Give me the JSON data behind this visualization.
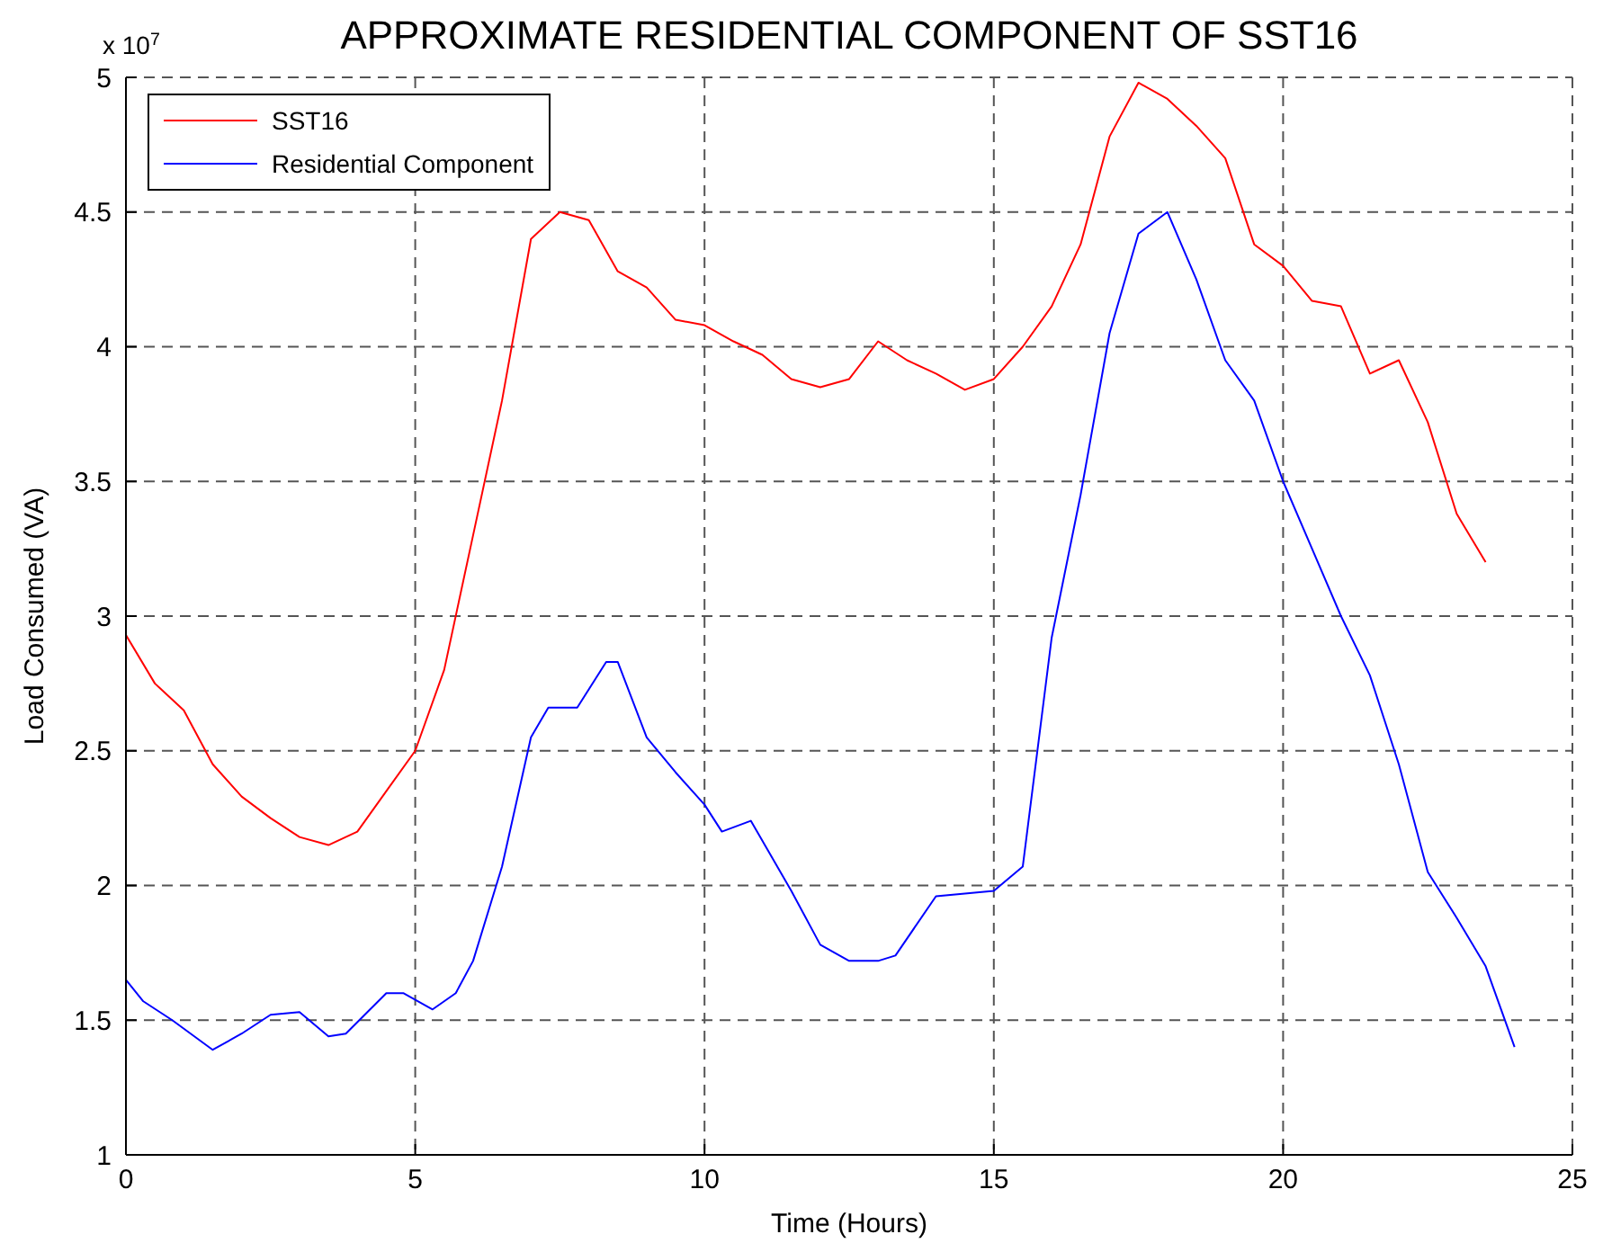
{
  "chart_data": {
    "type": "line",
    "title": "APPROXIMATE RESIDENTIAL COMPONENT OF SST16",
    "xlabel": "Time (Hours)",
    "ylabel": "Load Consumed (VA)",
    "annotations": [
      "x 10$^{7}$"
    ],
    "xlim": [
      0,
      25
    ],
    "xticks": [
      0,
      5,
      10,
      15,
      20,
      25
    ],
    "ylim": [
      1,
      5
    ],
    "yticks": [
      1,
      1.5,
      2,
      2.5,
      3,
      3.5,
      4,
      4.5,
      5
    ],
    "grid": true,
    "legend": "top left",
    "series": [
      {
        "name": "SST16",
        "color": "#ff0000",
        "x": [
          0,
          0.5,
          1,
          1.5,
          2,
          2.5,
          3,
          3.5,
          4,
          4.5,
          5,
          5.5,
          6,
          6.5,
          7,
          7.5,
          8,
          8.5,
          9,
          9.5,
          10,
          10.5,
          11,
          11.5,
          12,
          12.5,
          13,
          13.5,
          14,
          14.5,
          15,
          15.5,
          16,
          16.5,
          17,
          17.5,
          18,
          18.5,
          19,
          19.5,
          20,
          20.5,
          21,
          21.5,
          22,
          22.5,
          23,
          23.5
        ],
        "values": [
          2.93,
          2.75,
          2.65,
          2.45,
          2.33,
          2.25,
          2.18,
          2.15,
          2.2,
          2.35,
          2.5,
          2.8,
          3.3,
          3.8,
          4.4,
          4.5,
          4.47,
          4.28,
          4.22,
          4.1,
          4.08,
          4.02,
          3.97,
          3.88,
          3.85,
          3.88,
          4.02,
          3.95,
          3.9,
          3.84,
          3.88,
          4.0,
          4.15,
          4.38,
          4.78,
          4.98,
          4.92,
          4.82,
          4.7,
          4.38,
          4.3,
          4.17,
          4.15,
          3.9,
          3.95,
          3.72,
          3.38,
          3.2
        ]
      },
      {
        "name": "Residential Component",
        "color": "#0000ff",
        "x": [
          0,
          0.3,
          0.8,
          1.5,
          2,
          2.5,
          3,
          3.5,
          3.8,
          4.5,
          4.8,
          5.3,
          5.7,
          6,
          6.5,
          7,
          7.3,
          7.8,
          8.3,
          8.5,
          9,
          9.5,
          10,
          10.3,
          10.8,
          11.5,
          12,
          12.5,
          13,
          13.3,
          14,
          14.5,
          15,
          15.5,
          16,
          16.5,
          17,
          17.5,
          18,
          18.5,
          19,
          19.5,
          20,
          20.5,
          21,
          21.5,
          22,
          22.5,
          23,
          23.5,
          24
        ],
        "values": [
          1.65,
          1.57,
          1.5,
          1.39,
          1.45,
          1.52,
          1.53,
          1.44,
          1.45,
          1.6,
          1.6,
          1.54,
          1.6,
          1.72,
          2.07,
          2.55,
          2.66,
          2.66,
          2.83,
          2.83,
          2.55,
          2.42,
          2.3,
          2.2,
          2.24,
          1.98,
          1.78,
          1.72,
          1.72,
          1.74,
          1.96,
          1.97,
          1.98,
          2.07,
          2.92,
          3.45,
          4.05,
          4.42,
          4.5,
          4.25,
          3.95,
          3.8,
          3.5,
          3.25,
          3.0,
          2.78,
          2.45,
          2.05,
          1.88,
          1.7,
          1.4
        ]
      }
    ]
  }
}
